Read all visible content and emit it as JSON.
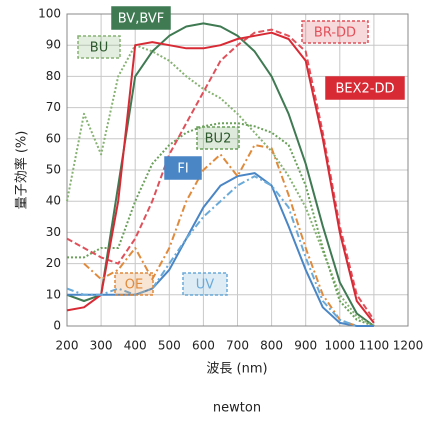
{
  "chart_data": {
    "type": "line",
    "x_label": "波長 (nm)",
    "y_label": "量子効率 (%)",
    "footer": "newton",
    "x": [
      200,
      250,
      300,
      350,
      400,
      450,
      500,
      550,
      600,
      650,
      700,
      750,
      800,
      850,
      900,
      950,
      1000,
      1050,
      1100
    ],
    "series": [
      {
        "name": "BV,BVF",
        "color": "#3f7a52",
        "style": "solid",
        "values": [
          10,
          8,
          10,
          45,
          80,
          88,
          93,
          96,
          97,
          96,
          93,
          88,
          80,
          68,
          52,
          32,
          14,
          4,
          0
        ]
      },
      {
        "name": "BU",
        "color": "#86b272",
        "style": "dotted",
        "values": [
          40,
          68,
          55,
          80,
          90,
          88,
          85,
          80,
          76,
          73,
          68,
          62,
          56,
          48,
          38,
          24,
          10,
          3,
          0
        ]
      },
      {
        "name": "BU2",
        "color": "#6aa05a",
        "style": "dotted",
        "values": [
          22,
          22,
          25,
          25,
          40,
          52,
          58,
          62,
          64,
          65,
          65,
          64,
          62,
          58,
          45,
          25,
          8,
          2,
          0
        ]
      },
      {
        "name": "BR-DD",
        "color": "#e0505a",
        "style": "dashed",
        "values": [
          28,
          25,
          22,
          20,
          28,
          40,
          55,
          65,
          75,
          85,
          90,
          94,
          95,
          93,
          88,
          62,
          32,
          10,
          2
        ]
      },
      {
        "name": "BEX2-DD",
        "color": "#d82a35",
        "style": "solid",
        "values": [
          5,
          6,
          10,
          40,
          90,
          91,
          90,
          89,
          89,
          90,
          92,
          93,
          94,
          92,
          85,
          60,
          30,
          8,
          1
        ]
      },
      {
        "name": "FI",
        "color": "#4a86c5",
        "style": "solid",
        "values": [
          10,
          10,
          10,
          10,
          10,
          12,
          18,
          28,
          38,
          45,
          48,
          49,
          45,
          32,
          18,
          6,
          1,
          0,
          0
        ]
      },
      {
        "name": "OE",
        "color": "#e08a3c",
        "style": "dashdot",
        "values": [
          null,
          20,
          15,
          18,
          25,
          15,
          25,
          40,
          50,
          55,
          48,
          58,
          57,
          42,
          25,
          10,
          2,
          0,
          null
        ]
      },
      {
        "name": "UV",
        "color": "#6aaad8",
        "style": "dashdot",
        "values": [
          12,
          10,
          10,
          12,
          10,
          12,
          20,
          28,
          35,
          40,
          45,
          48,
          45,
          38,
          22,
          8,
          2,
          0,
          null
        ]
      }
    ],
    "xlim": [
      200,
      1200
    ],
    "xticks": [
      200,
      300,
      400,
      500,
      600,
      700,
      800,
      900,
      1000,
      1100,
      1200
    ],
    "ylim": [
      0,
      100
    ],
    "yticks": [
      0,
      10,
      20,
      30,
      40,
      50,
      60,
      70,
      80,
      90,
      100
    ],
    "grid": true
  }
}
